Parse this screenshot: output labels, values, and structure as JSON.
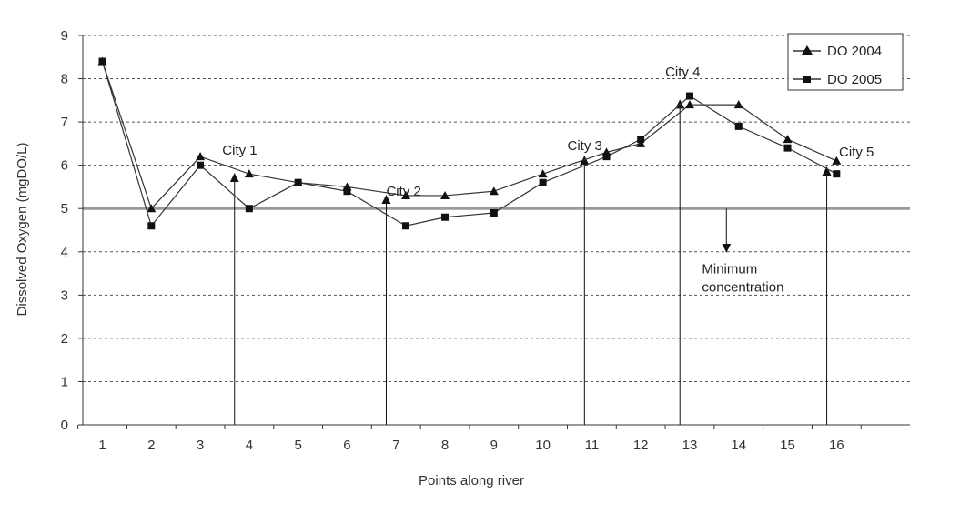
{
  "chart_data": {
    "type": "line",
    "title": "",
    "xlabel": "Points along river",
    "ylabel": "Dissolved Oxygen (mgDO/L)",
    "ylim": [
      0,
      9
    ],
    "xlim": [
      0.6,
      17.5
    ],
    "y_ticks": [
      0,
      1,
      2,
      3,
      4,
      5,
      6,
      7,
      8,
      9
    ],
    "x_ticks": [
      1,
      2,
      3,
      4,
      5,
      6,
      7,
      8,
      9,
      10,
      11,
      12,
      13,
      14,
      15,
      16
    ],
    "grid": "horizontal dashed",
    "legend_position": "top-right",
    "series": [
      {
        "name": "DO 2004",
        "marker": "triangle",
        "x": [
          1,
          2,
          3,
          4,
          5,
          6,
          7.2,
          8,
          9,
          10,
          11.3,
          12,
          13,
          14,
          15,
          16
        ],
        "y": [
          8.4,
          5.0,
          6.2,
          5.8,
          5.6,
          5.5,
          5.3,
          5.3,
          5.4,
          5.8,
          6.3,
          6.5,
          7.4,
          7.4,
          6.6,
          6.1
        ]
      },
      {
        "name": "DO 2005",
        "marker": "square",
        "x": [
          1,
          2,
          3,
          4,
          5,
          6,
          7.2,
          8,
          9,
          10,
          11.3,
          12,
          13,
          14,
          15,
          16
        ],
        "y": [
          8.4,
          4.6,
          6.0,
          5.0,
          5.6,
          5.4,
          4.6,
          4.8,
          4.9,
          5.6,
          6.2,
          6.6,
          7.6,
          6.9,
          6.4,
          5.8
        ]
      }
    ],
    "threshold": {
      "y": 5.0,
      "color": "#9a9a9a"
    },
    "annotations": [
      {
        "id": "city1",
        "label": "City 1",
        "x": 3.7,
        "arrow_to_y": 5.8,
        "label_x": 3.45,
        "label_y": 6.25
      },
      {
        "id": "city2",
        "label": "City 2",
        "x": 6.8,
        "arrow_to_y": 5.3,
        "label_x": 6.8,
        "label_y": 5.3
      },
      {
        "id": "city3",
        "label": "City 3",
        "x": 10.85,
        "arrow_to_y": 6.2,
        "label_x": 10.5,
        "label_y": 6.35
      },
      {
        "id": "city4",
        "label": "City 4",
        "x": 12.8,
        "arrow_to_y": 7.5,
        "label_x": 12.5,
        "label_y": 8.05
      },
      {
        "id": "city5",
        "label": "City 5",
        "x": 15.8,
        "arrow_to_y": 5.95,
        "label_x": 16.05,
        "label_y": 6.2
      }
    ],
    "min_label": [
      "Minimum",
      "concentration"
    ],
    "min_arrow": {
      "x": 13.75,
      "from_y": 5.0,
      "to_y": 4.0
    },
    "min_label_pos": {
      "x": 13.25,
      "y": 3.5
    }
  },
  "colors": {
    "line": "#333333",
    "grid": "#555555",
    "axis": "#333333",
    "threshold": "#9a9a9a"
  }
}
